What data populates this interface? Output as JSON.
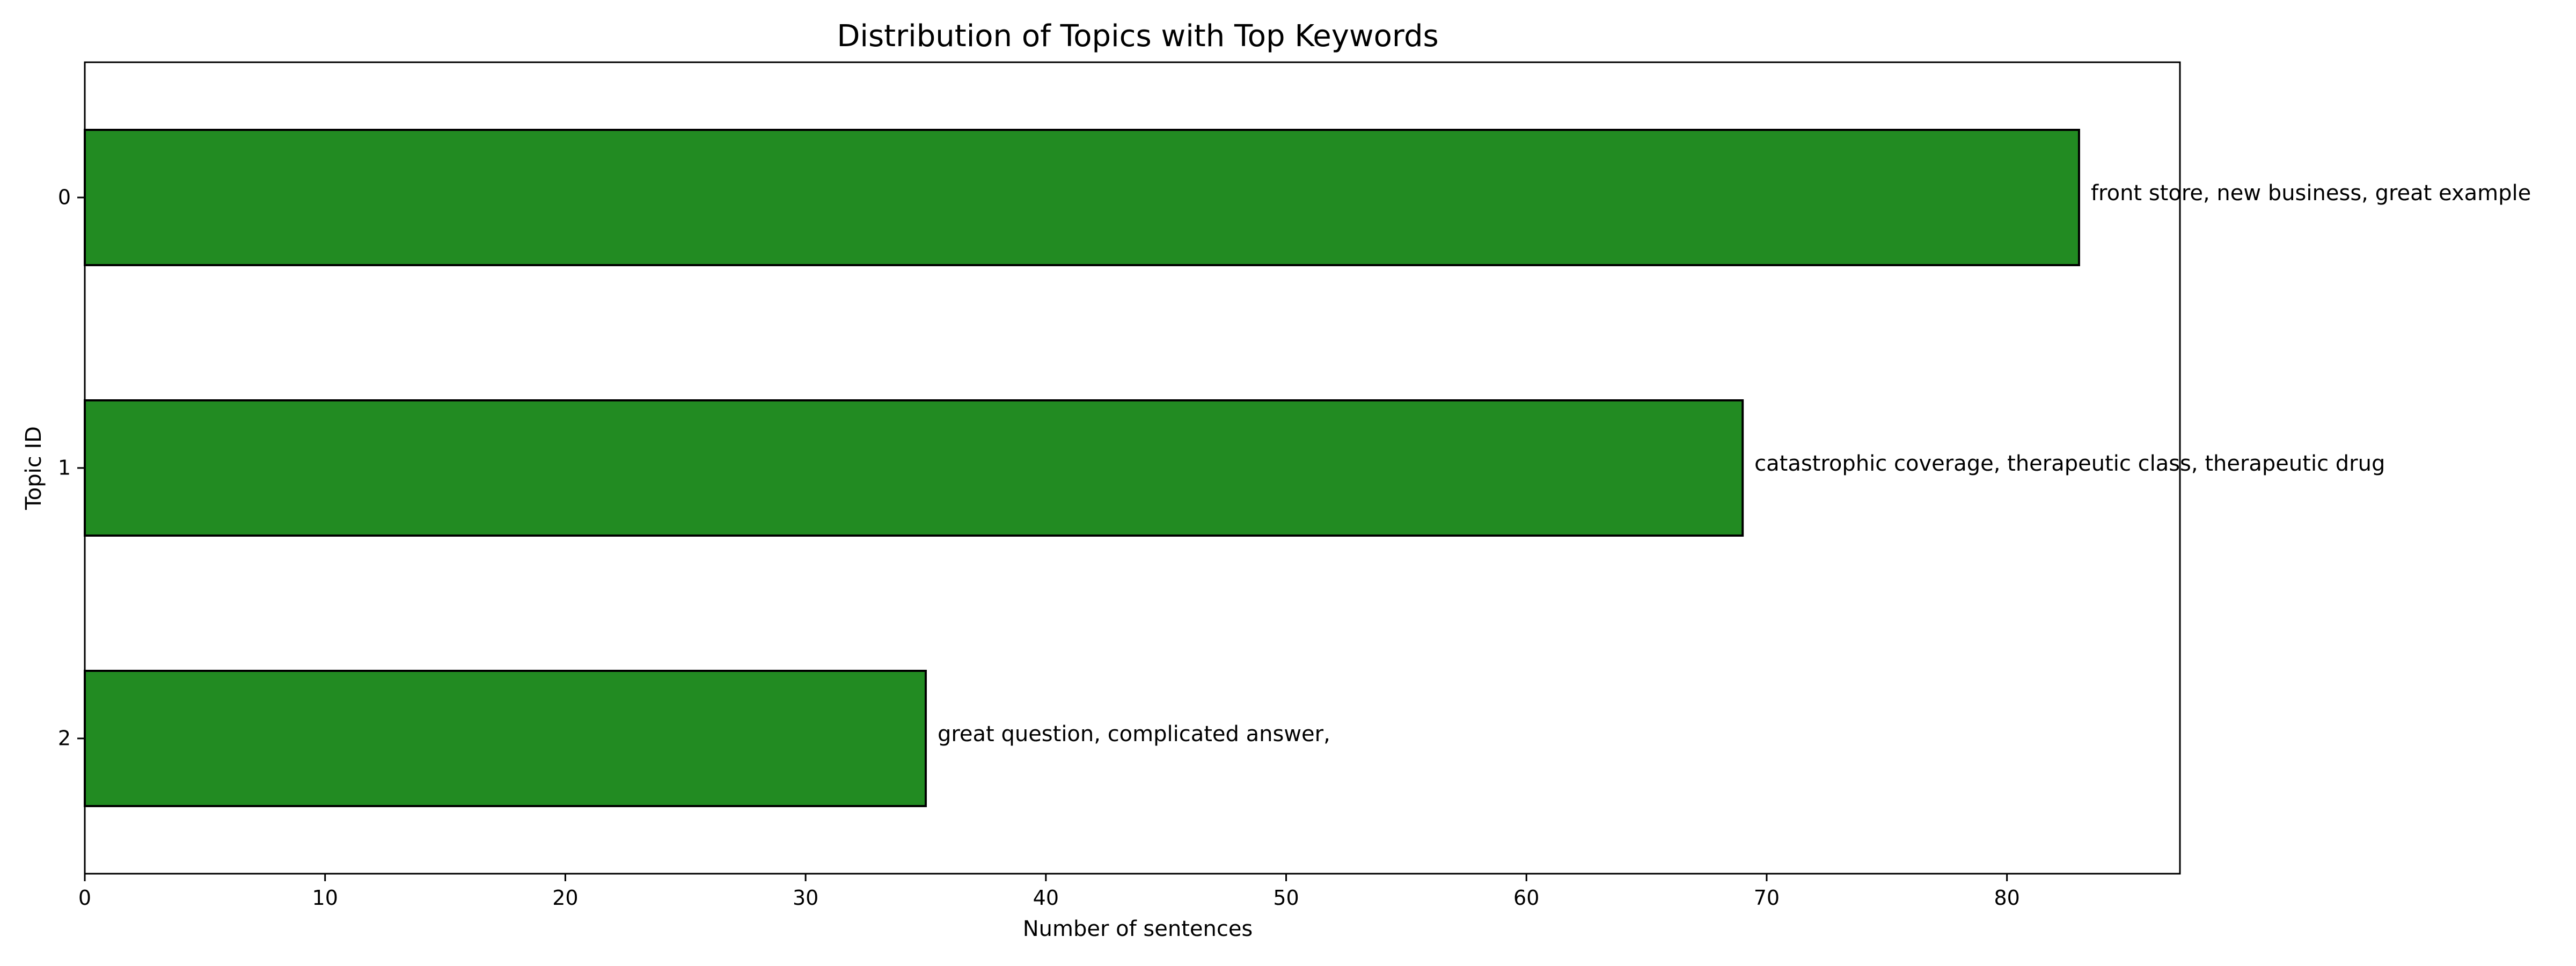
{
  "chart_data": {
    "type": "bar",
    "orientation": "horizontal",
    "title": "Distribution of Topics with Top Keywords",
    "xlabel": "Number of sentences",
    "ylabel": "Topic ID",
    "xlim": [
      0,
      87.2
    ],
    "x_ticks": [
      0,
      10,
      20,
      30,
      40,
      50,
      60,
      70,
      80
    ],
    "categories": [
      "0",
      "1",
      "2"
    ],
    "values": [
      83,
      69,
      35
    ],
    "bar_labels": [
      "front store, new business, great example",
      "catastrophic coverage, therapeutic class, therapeutic drug",
      "great question, complicated answer,"
    ],
    "bar_color": "#228b22",
    "bar_edge_color": "#000000",
    "grid": false,
    "legend": "none"
  }
}
